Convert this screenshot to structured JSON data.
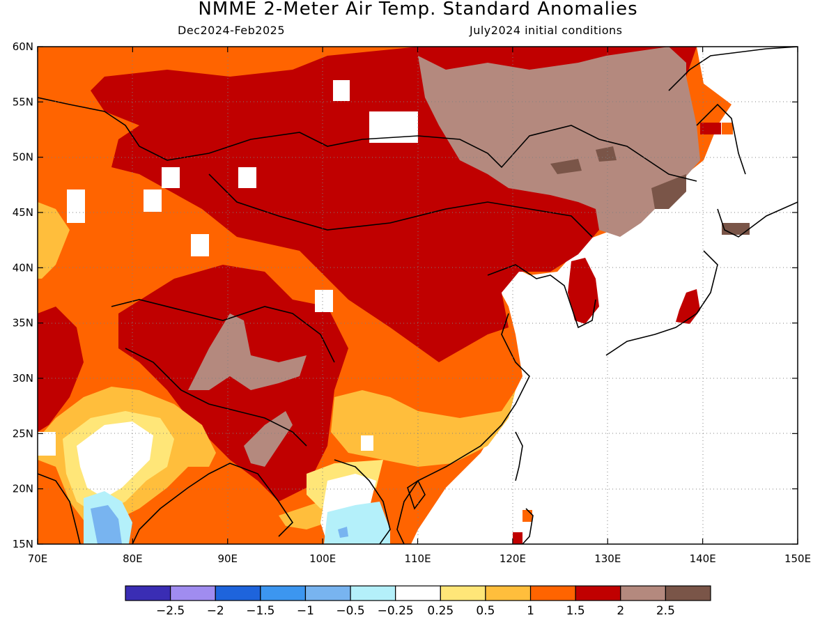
{
  "header": {
    "title": "NMME 2-Meter Air Temp. Standard Anomalies",
    "period": "Dec2024-Feb2025",
    "initial_conditions": "July2024 initial conditions"
  },
  "map": {
    "lon_range": [
      70,
      150
    ],
    "lat_range": [
      15,
      60
    ],
    "lon_ticks": [
      "70E",
      "80E",
      "90E",
      "100E",
      "110E",
      "120E",
      "130E",
      "140E",
      "150E"
    ],
    "lat_ticks": [
      "15N",
      "20N",
      "25N",
      "30N",
      "35N",
      "40N",
      "45N",
      "50N",
      "55N",
      "60N"
    ]
  },
  "colorbar": {
    "colors": [
      "#3a2db4",
      "#a08cf0",
      "#1e64dc",
      "#3c96f0",
      "#78b4f0",
      "#b4f0fa",
      "#ffffff",
      "#ffe678",
      "#ffbe3c",
      "#ff6400",
      "#c00000",
      "#b4897e",
      "#7a5548"
    ],
    "labels": [
      "-2.5",
      "-2",
      "-1.5",
      "-1",
      "-0.5",
      "-0.25",
      "0.25",
      "0.5",
      "1",
      "1.5",
      "2",
      "2.5"
    ]
  },
  "colors": {
    "anomaly_1_0_to_1_5": "#ff6400",
    "anomaly_1_5_to_2_0": "#c00000",
    "anomaly_2_0_to_2_5": "#b4897e",
    "anomaly_over_2_5": "#7a5548",
    "anomaly_0_5_to_1_0": "#ffbe3c",
    "anomaly_0_25_to_0_5": "#ffe678"
  }
}
